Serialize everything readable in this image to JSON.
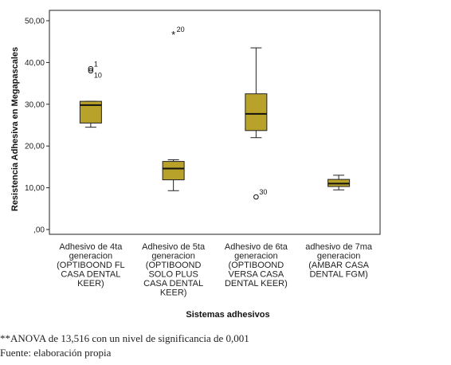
{
  "chart_data": {
    "type": "boxplot",
    "title": "",
    "xlabel": "Sistemas adhesivos",
    "ylabel": "Resistencia Adhesiva en Megapascales",
    "ylim": [
      0,
      50
    ],
    "yticks": [
      ",00",
      "10,00",
      "20,00",
      "30,00",
      "40,00",
      "50,00"
    ],
    "ytick_values": [
      0,
      10,
      20,
      30,
      40,
      50
    ],
    "grid": false,
    "box_color": "#b9a22a",
    "categories": [
      {
        "label_lines": [
          "Adhesivo de 4ta",
          "generacion",
          "(OPTIBOOND FL",
          "CASA DENTAL",
          "KEER)"
        ],
        "min": 24.5,
        "q1": 25.5,
        "median": 29.8,
        "q3": 30.7,
        "max": 30.7,
        "outliers": [
          {
            "value": 38.5,
            "marker": "o",
            "label": "1"
          },
          {
            "value": 38.0,
            "marker": "o",
            "label": "10"
          }
        ]
      },
      {
        "label_lines": [
          "Adhesivo de 5ta",
          "generacion",
          "(OPTIBOOND",
          "SOLO PLUS",
          "CASA DENTAL",
          "KEER)"
        ],
        "min": 9.3,
        "q1": 11.9,
        "median": 14.6,
        "q3": 16.3,
        "max": 16.7,
        "outliers": [
          {
            "value": 46.8,
            "marker": "*",
            "label": "20"
          }
        ]
      },
      {
        "label_lines": [
          "Adhesivo de 6ta",
          "generacion",
          "(OPTIBOOND",
          "VERSA CASA",
          "DENTAL KEER)"
        ],
        "min": 22.0,
        "q1": 23.7,
        "median": 27.7,
        "q3": 32.5,
        "max": 43.5,
        "outliers": [
          {
            "value": 7.8,
            "marker": "o",
            "label": "30"
          }
        ]
      },
      {
        "label_lines": [
          "adhesivo de 7ma",
          "generacion",
          "(AMBAR CASA",
          "DENTAL FGM)"
        ],
        "min": 9.5,
        "q1": 10.3,
        "median": 11.0,
        "q3": 12.0,
        "max": 13.0,
        "outliers": []
      }
    ]
  },
  "footnotes": {
    "anova": "**ANOVA de 13,516 con un nivel de significancia de 0,001",
    "source": "Fuente: elaboración propia"
  }
}
